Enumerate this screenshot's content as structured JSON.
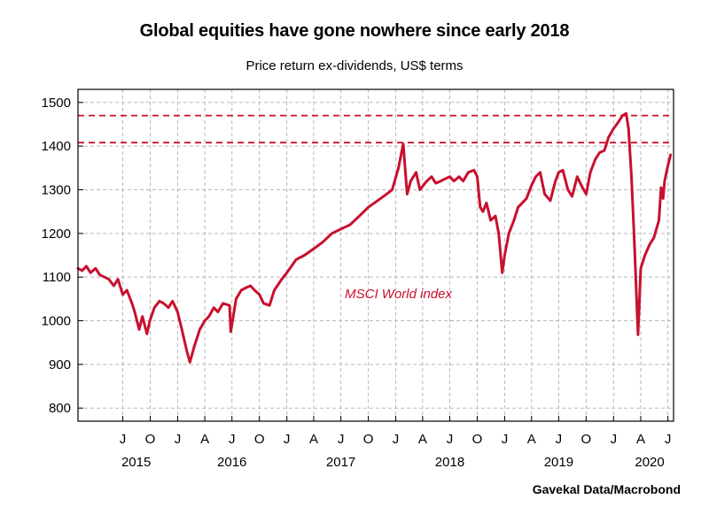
{
  "colors": {
    "series": "#c8102e",
    "reference": "#c8102e",
    "grid": "#b8b8b8",
    "axis": "#000000"
  },
  "chart_data": {
    "type": "line",
    "title": "Global equities have gone nowhere since early 2018",
    "subtitle": "Price return ex-dividends, US$ terms",
    "source": "Gavekal Data/Macrobond",
    "annotation": "MSCI World index",
    "ylim": [
      770,
      1530
    ],
    "xlim": [
      "2015-02-01",
      "2020-07-20"
    ],
    "grid": true,
    "y_ticks": [
      800,
      900,
      1000,
      1100,
      1200,
      1300,
      1400,
      1500
    ],
    "x_ticks": [
      {
        "date": "2015-07-01",
        "label": "J"
      },
      {
        "date": "2015-10-01",
        "label": "O"
      },
      {
        "date": "2016-01-01",
        "label": "J"
      },
      {
        "date": "2016-04-01",
        "label": "A"
      },
      {
        "date": "2016-07-01",
        "label": "J"
      },
      {
        "date": "2016-10-01",
        "label": "O"
      },
      {
        "date": "2017-01-01",
        "label": "J"
      },
      {
        "date": "2017-04-01",
        "label": "A"
      },
      {
        "date": "2017-07-01",
        "label": "J"
      },
      {
        "date": "2017-10-01",
        "label": "O"
      },
      {
        "date": "2018-01-01",
        "label": "J"
      },
      {
        "date": "2018-04-01",
        "label": "A"
      },
      {
        "date": "2018-07-01",
        "label": "J"
      },
      {
        "date": "2018-10-01",
        "label": "O"
      },
      {
        "date": "2019-01-01",
        "label": "J"
      },
      {
        "date": "2019-04-01",
        "label": "A"
      },
      {
        "date": "2019-07-01",
        "label": "J"
      },
      {
        "date": "2019-10-01",
        "label": "O"
      },
      {
        "date": "2020-01-01",
        "label": "J"
      },
      {
        "date": "2020-04-01",
        "label": "A"
      },
      {
        "date": "2020-07-01",
        "label": "J"
      }
    ],
    "year_labels": [
      {
        "date": "2015-08-15",
        "label": "2015"
      },
      {
        "date": "2016-07-01",
        "label": "2016"
      },
      {
        "date": "2017-07-01",
        "label": "2017"
      },
      {
        "date": "2018-07-01",
        "label": "2018"
      },
      {
        "date": "2019-07-01",
        "label": "2019"
      },
      {
        "date": "2020-05-01",
        "label": "2020"
      }
    ],
    "reference_lines": [
      1470,
      1408
    ],
    "series": [
      {
        "x": [
          "2015-02-01",
          "2015-02-15",
          "2015-03-01",
          "2015-03-15",
          "2015-04-01",
          "2015-04-15",
          "2015-05-01",
          "2015-05-15",
          "2015-06-01",
          "2015-06-15",
          "2015-07-01",
          "2015-07-15",
          "2015-08-01",
          "2015-08-10",
          "2015-08-25",
          "2015-09-05",
          "2015-09-20",
          "2015-09-30",
          "2015-10-15",
          "2015-11-01",
          "2015-11-15",
          "2015-12-01",
          "2015-12-15",
          "2016-01-01",
          "2016-01-15",
          "2016-02-01",
          "2016-02-11",
          "2016-02-25",
          "2016-03-15",
          "2016-04-01",
          "2016-04-15",
          "2016-05-01",
          "2016-05-15",
          "2016-06-01",
          "2016-06-23",
          "2016-06-27",
          "2016-07-15",
          "2016-08-01",
          "2016-08-15",
          "2016-09-01",
          "2016-09-15",
          "2016-10-01",
          "2016-10-15",
          "2016-11-04",
          "2016-11-20",
          "2016-12-15",
          "2017-01-01",
          "2017-02-01",
          "2017-03-01",
          "2017-04-01",
          "2017-05-01",
          "2017-06-01",
          "2017-07-01",
          "2017-08-01",
          "2017-09-01",
          "2017-10-01",
          "2017-11-01",
          "2017-12-01",
          "2017-12-20",
          "2018-01-10",
          "2018-01-26",
          "2018-02-08",
          "2018-02-20",
          "2018-03-10",
          "2018-03-23",
          "2018-04-15",
          "2018-05-01",
          "2018-05-15",
          "2018-06-01",
          "2018-06-15",
          "2018-07-01",
          "2018-07-15",
          "2018-08-01",
          "2018-08-15",
          "2018-09-01",
          "2018-09-20",
          "2018-10-01",
          "2018-10-11",
          "2018-10-20",
          "2018-11-01",
          "2018-11-15",
          "2018-12-01",
          "2018-12-12",
          "2018-12-24",
          "2019-01-01",
          "2019-01-15",
          "2019-02-01",
          "2019-02-15",
          "2019-03-01",
          "2019-03-15",
          "2019-04-01",
          "2019-04-15",
          "2019-04-30",
          "2019-05-15",
          "2019-06-03",
          "2019-06-20",
          "2019-07-01",
          "2019-07-15",
          "2019-08-01",
          "2019-08-15",
          "2019-09-01",
          "2019-09-15",
          "2019-10-01",
          "2019-10-15",
          "2019-11-01",
          "2019-11-15",
          "2019-12-01",
          "2019-12-15",
          "2020-01-01",
          "2020-01-17",
          "2020-01-31",
          "2020-02-12",
          "2020-02-20",
          "2020-03-01",
          "2020-03-10",
          "2020-03-23",
          "2020-04-01",
          "2020-04-15",
          "2020-05-01",
          "2020-05-15",
          "2020-06-01",
          "2020-06-08",
          "2020-06-15",
          "2020-06-20",
          "2020-07-01",
          "2020-07-10"
        ],
        "values": [
          1120,
          1115,
          1125,
          1110,
          1120,
          1105,
          1100,
          1095,
          1080,
          1095,
          1060,
          1070,
          1040,
          1020,
          980,
          1010,
          970,
          1000,
          1030,
          1045,
          1040,
          1030,
          1045,
          1020,
          980,
          930,
          905,
          940,
          980,
          1000,
          1010,
          1030,
          1020,
          1040,
          1035,
          975,
          1050,
          1070,
          1075,
          1080,
          1070,
          1060,
          1040,
          1035,
          1070,
          1095,
          1110,
          1140,
          1150,
          1165,
          1180,
          1200,
          1210,
          1220,
          1240,
          1260,
          1275,
          1290,
          1300,
          1350,
          1405,
          1290,
          1320,
          1340,
          1300,
          1320,
          1330,
          1315,
          1320,
          1325,
          1330,
          1320,
          1330,
          1320,
          1340,
          1345,
          1330,
          1260,
          1250,
          1270,
          1230,
          1240,
          1200,
          1110,
          1150,
          1200,
          1230,
          1260,
          1270,
          1280,
          1310,
          1330,
          1340,
          1290,
          1275,
          1320,
          1340,
          1345,
          1300,
          1285,
          1330,
          1310,
          1290,
          1340,
          1370,
          1385,
          1390,
          1420,
          1440,
          1455,
          1470,
          1475,
          1440,
          1330,
          1190,
          968,
          1120,
          1150,
          1175,
          1190,
          1230,
          1305,
          1280,
          1320,
          1355,
          1380
        ]
      }
    ]
  }
}
